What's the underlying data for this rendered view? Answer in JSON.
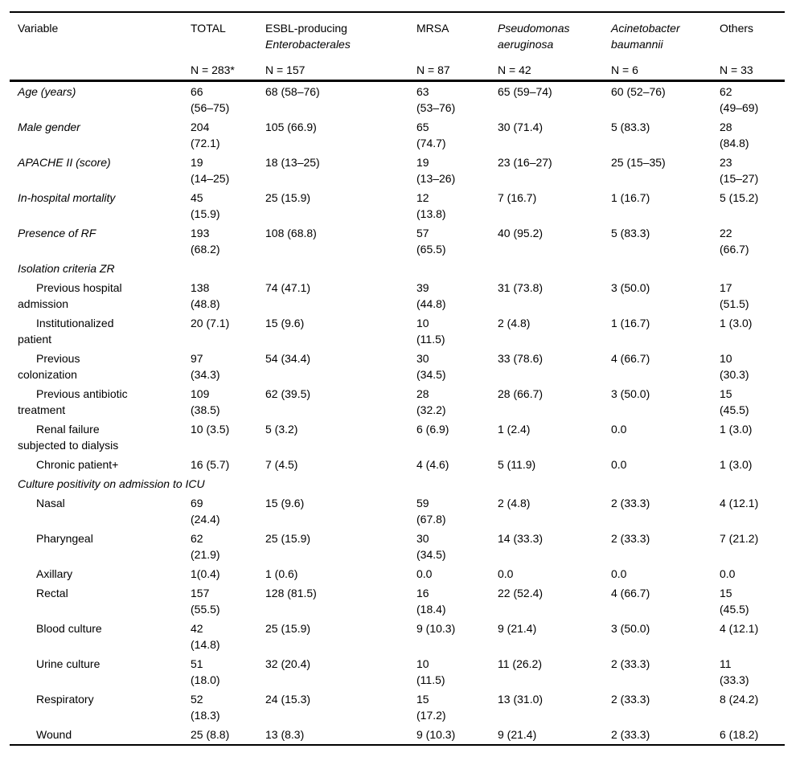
{
  "table": {
    "type": "table",
    "description_visible": false,
    "columns": [
      {
        "key": "variable",
        "label_lines": [
          {
            "text": "Variable",
            "italic": false
          }
        ],
        "n_label": ""
      },
      {
        "key": "total",
        "label_lines": [
          {
            "text": "TOTAL",
            "italic": false
          }
        ],
        "n_label": "N = 283*"
      },
      {
        "key": "esbl",
        "label_lines": [
          {
            "text": "ESBL-producing",
            "italic": false
          },
          {
            "text": "Enterobacterales",
            "italic": true
          }
        ],
        "n_label": "N = 157"
      },
      {
        "key": "mrsa",
        "label_lines": [
          {
            "text": "MRSA",
            "italic": false
          }
        ],
        "n_label": "N = 87"
      },
      {
        "key": "pseudomonas",
        "label_lines": [
          {
            "text": "Pseudomonas",
            "italic": true
          },
          {
            "text": "aeruginosa",
            "italic": true
          }
        ],
        "n_label": "N = 42"
      },
      {
        "key": "acinetobacter",
        "label_lines": [
          {
            "text": "Acinetobacter",
            "italic": true
          },
          {
            "text": "baumannii",
            "italic": true
          }
        ],
        "n_label": "N = 6"
      },
      {
        "key": "others",
        "label_lines": [
          {
            "text": "Others",
            "italic": false
          }
        ],
        "n_label": "N = 33"
      }
    ],
    "rows": [
      {
        "type": "data",
        "label": "Age (years)",
        "italic": true,
        "indent": false,
        "values": [
          "66\n(56–75)",
          "68 (58–76)",
          "63\n(53–76)",
          "65 (59–74)",
          "60 (52–76)",
          "62\n(49–69)"
        ]
      },
      {
        "type": "data",
        "label": "Male gender",
        "italic": true,
        "indent": false,
        "values": [
          "204\n(72.1)",
          "105 (66.9)",
          "65\n(74.7)",
          "30 (71.4)",
          "5 (83.3)",
          "28\n(84.8)"
        ]
      },
      {
        "type": "data",
        "label": "APACHE II (score)",
        "italic": true,
        "indent": false,
        "values": [
          "19\n(14–25)",
          "18 (13–25)",
          "19\n(13–26)",
          "23 (16–27)",
          "25 (15–35)",
          "23\n(15–27)"
        ]
      },
      {
        "type": "data",
        "label": "In-hospital mortality",
        "italic": true,
        "indent": false,
        "values": [
          "45\n(15.9)",
          "25 (15.9)",
          "12\n(13.8)",
          "7 (16.7)",
          "1 (16.7)",
          "5 (15.2)"
        ]
      },
      {
        "type": "data",
        "label": "Presence of RF",
        "italic": true,
        "indent": false,
        "values": [
          "193\n(68.2)",
          "108 (68.8)",
          "57\n(65.5)",
          "40 (95.2)",
          "5 (83.3)",
          "22\n(66.7)"
        ]
      },
      {
        "type": "section",
        "label": "Isolation criteria ZR"
      },
      {
        "type": "data",
        "label": "Previous hospital\nadmission",
        "italic": false,
        "indent": true,
        "values": [
          "138\n(48.8)",
          "74 (47.1)",
          "39\n(44.8)",
          "31 (73.8)",
          "3 (50.0)",
          "17\n(51.5)"
        ]
      },
      {
        "type": "data",
        "label": "Institutionalized\npatient",
        "italic": false,
        "indent": true,
        "values": [
          "20 (7.1)",
          "15 (9.6)",
          "10\n(11.5)",
          "2 (4.8)",
          "1 (16.7)",
          "1 (3.0)"
        ]
      },
      {
        "type": "data",
        "label": "Previous\ncolonization",
        "italic": false,
        "indent": true,
        "values": [
          "97\n(34.3)",
          "54 (34.4)",
          "30\n(34.5)",
          "33 (78.6)",
          "4 (66.7)",
          "10\n(30.3)"
        ]
      },
      {
        "type": "data",
        "label": "Previous antibiotic\ntreatment",
        "italic": false,
        "indent": true,
        "values": [
          "109\n(38.5)",
          "62 (39.5)",
          "28\n(32.2)",
          "28 (66.7)",
          "3 (50.0)",
          "15\n(45.5)"
        ]
      },
      {
        "type": "data",
        "label": "Renal failure\nsubjected to dialysis",
        "italic": false,
        "indent": true,
        "values": [
          "10 (3.5)",
          "5 (3.2)",
          "6 (6.9)",
          "1 (2.4)",
          "0.0",
          "1 (3.0)"
        ]
      },
      {
        "type": "data",
        "label": "Chronic patient+",
        "italic": false,
        "indent": true,
        "values": [
          "16 (5.7)",
          "7 (4.5)",
          "4 (4.6)",
          "5 (11.9)",
          "0.0",
          "1 (3.0)"
        ]
      },
      {
        "type": "section",
        "label": "Culture positivity on admission to ICU"
      },
      {
        "type": "data",
        "label": "Nasal",
        "italic": false,
        "indent": true,
        "values": [
          "69\n(24.4)",
          "15 (9.6)",
          "59\n(67.8)",
          "2 (4.8)",
          "2 (33.3)",
          "4 (12.1)"
        ]
      },
      {
        "type": "data",
        "label": "Pharyngeal",
        "italic": false,
        "indent": true,
        "values": [
          "62\n(21.9)",
          "25 (15.9)",
          "30\n(34.5)",
          "14 (33.3)",
          "2 (33.3)",
          "7 (21.2)"
        ]
      },
      {
        "type": "data",
        "label": "Axillary",
        "italic": false,
        "indent": true,
        "values": [
          "1(0.4)",
          "1 (0.6)",
          "0.0",
          "0.0",
          "0.0",
          "0.0"
        ]
      },
      {
        "type": "data",
        "label": "Rectal",
        "italic": false,
        "indent": true,
        "values": [
          "157\n(55.5)",
          "128 (81.5)",
          "16\n(18.4)",
          "22 (52.4)",
          "4 (66.7)",
          "15\n(45.5)"
        ]
      },
      {
        "type": "data",
        "label": "Blood culture",
        "italic": false,
        "indent": true,
        "values": [
          "42\n(14.8)",
          "25 (15.9)",
          "9 (10.3)",
          "9 (21.4)",
          "3 (50.0)",
          "4 (12.1)"
        ]
      },
      {
        "type": "data",
        "label": "Urine culture",
        "italic": false,
        "indent": true,
        "values": [
          "51\n(18.0)",
          "32 (20.4)",
          "10\n(11.5)",
          "11 (26.2)",
          "2 (33.3)",
          "11\n(33.3)"
        ]
      },
      {
        "type": "data",
        "label": "Respiratory",
        "italic": false,
        "indent": true,
        "values": [
          "52\n(18.3)",
          "24 (15.3)",
          "15\n(17.2)",
          "13 (31.0)",
          "2 (33.3)",
          "8 (24.2)"
        ]
      },
      {
        "type": "data",
        "label": "Wound",
        "italic": false,
        "indent": true,
        "values": [
          "25 (8.8)",
          "13 (8.3)",
          "9 (10.3)",
          "9 (21.4)",
          "2 (33.3)",
          "6 (18.2)"
        ]
      }
    ]
  }
}
